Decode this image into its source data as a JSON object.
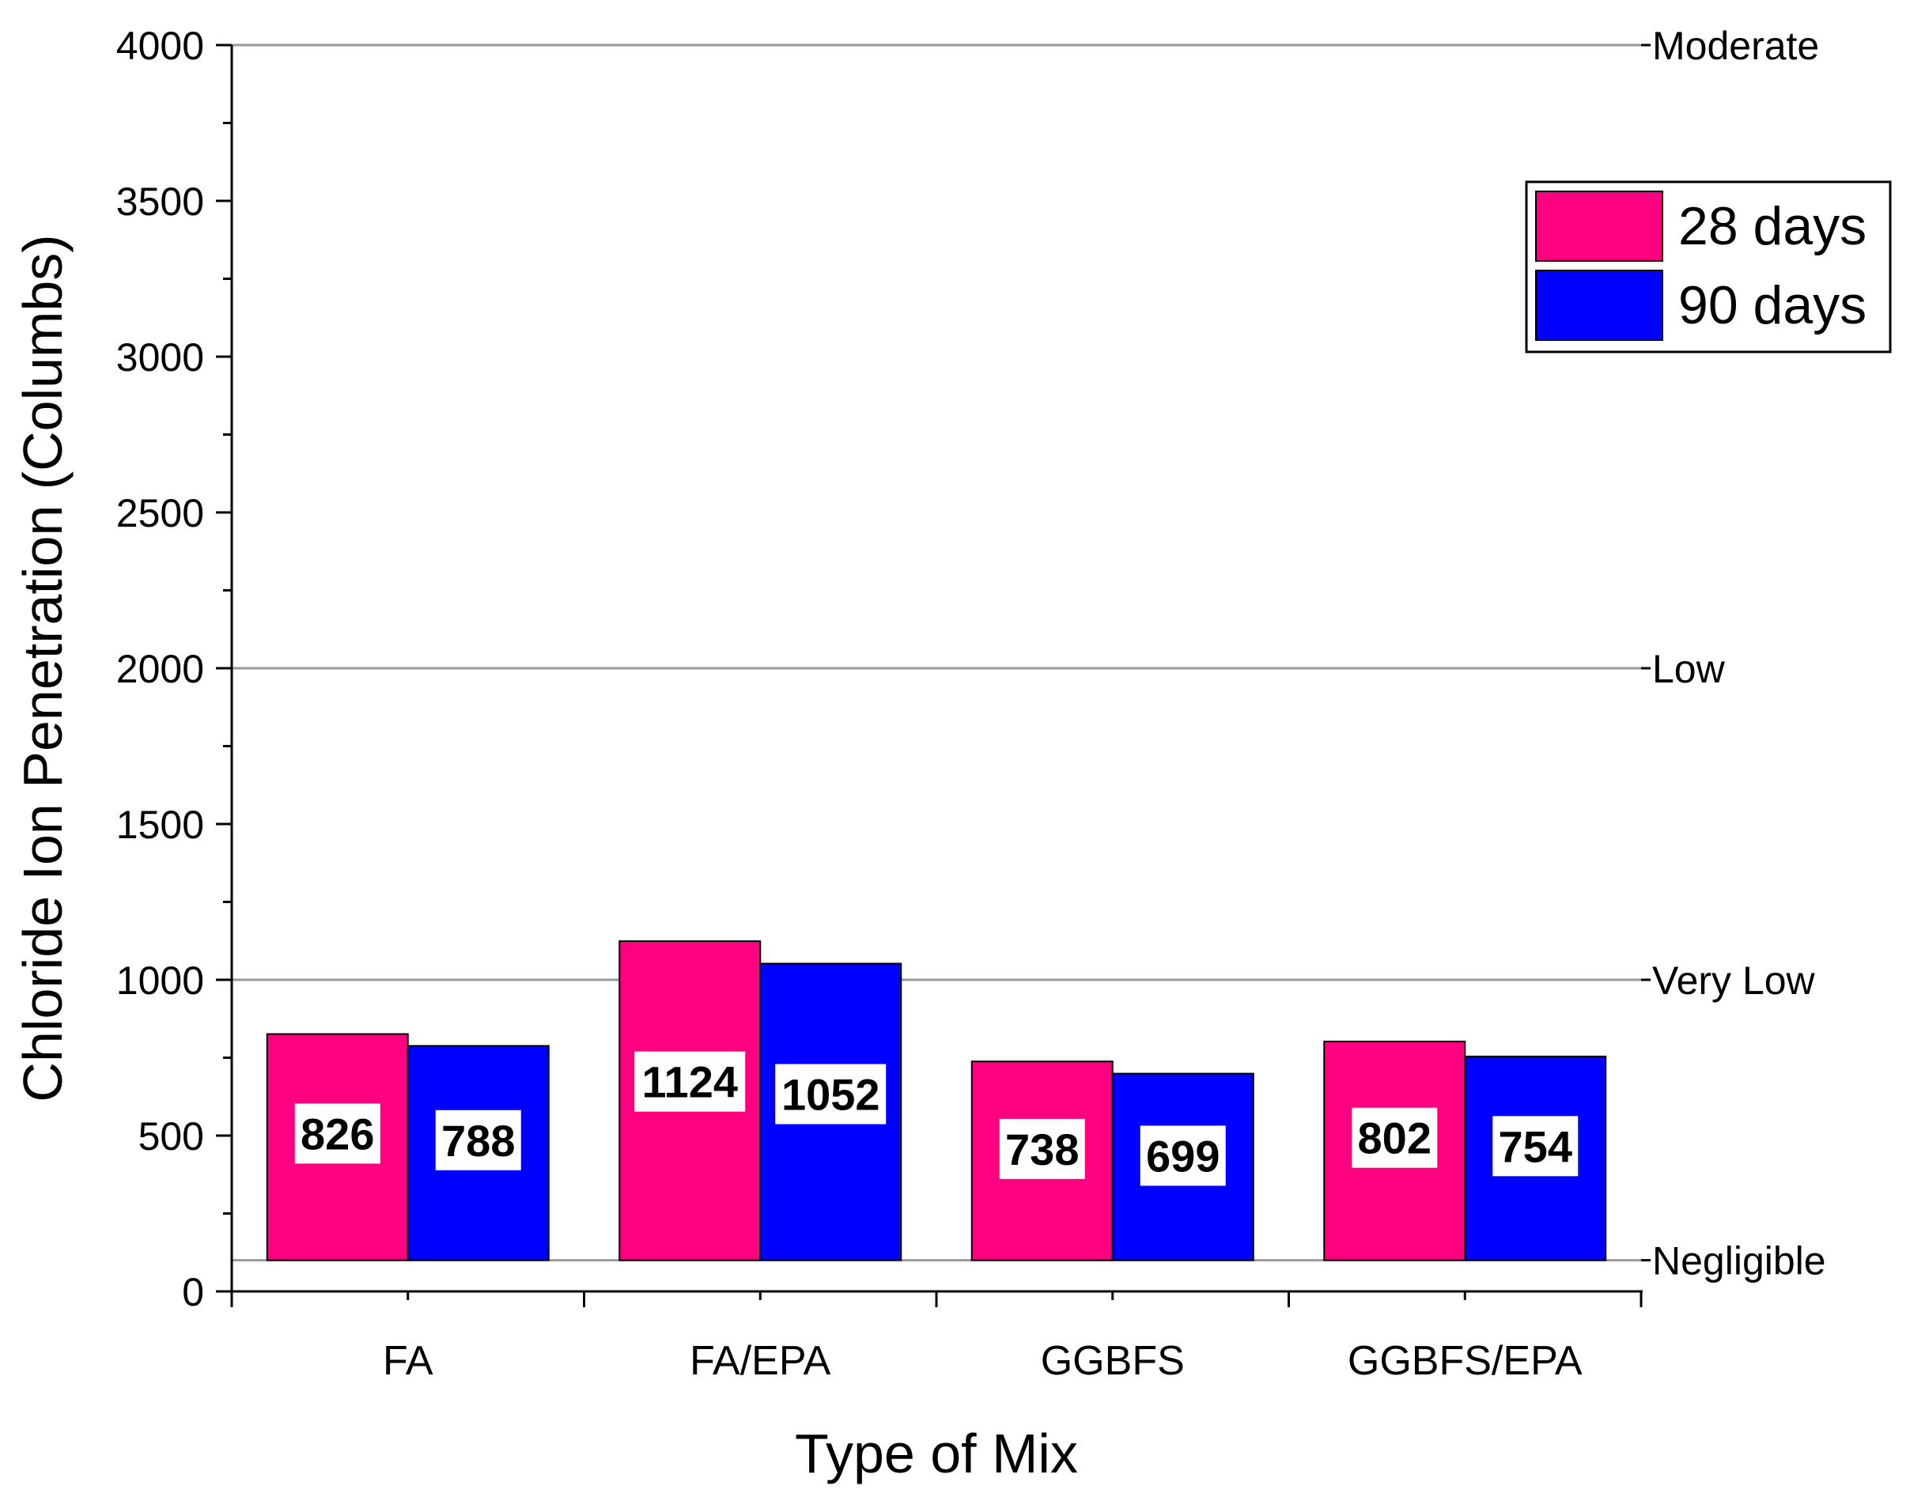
{
  "chart_data": {
    "type": "bar",
    "title": "",
    "xlabel": "Type of Mix",
    "ylabel": "Chloride Ion Penetration (Columbs)",
    "ylim": [
      0,
      4000
    ],
    "yticks": [
      0,
      500,
      1000,
      1500,
      2000,
      2500,
      3000,
      3500,
      4000
    ],
    "categories": [
      "FA",
      "FA/EPA",
      "GGBFS",
      "GGBFS/EPA"
    ],
    "baseline": 100,
    "series": [
      {
        "name": "28 days",
        "color": "#ff0080",
        "values": [
          826,
          1124,
          738,
          802
        ]
      },
      {
        "name": "90 days",
        "color": "#0000ff",
        "values": [
          788,
          1052,
          699,
          754
        ]
      }
    ],
    "reference_lines": [
      {
        "value": 4000,
        "label": "Moderate"
      },
      {
        "value": 2000,
        "label": "Low"
      },
      {
        "value": 1000,
        "label": "Very Low"
      },
      {
        "value": 100,
        "label": "Negligible"
      }
    ],
    "legend_position": "top-right",
    "grid": false
  }
}
